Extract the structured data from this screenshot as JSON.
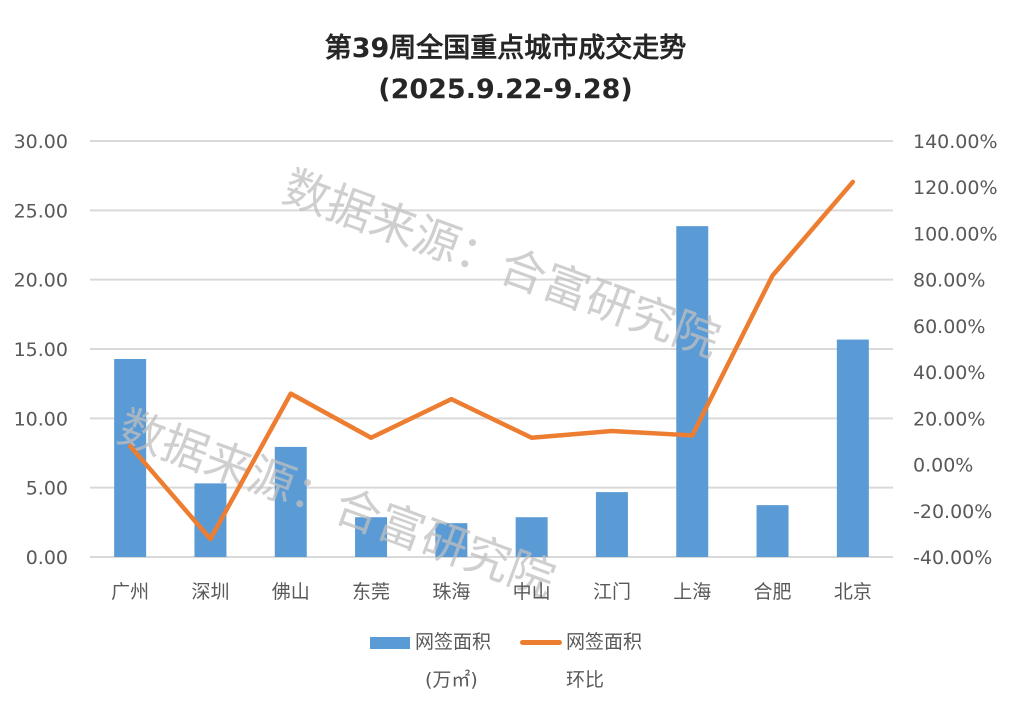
{
  "title": {
    "line1": "第39周全国重点城市成交走势",
    "line2": "(2025.9.22-9.28)"
  },
  "watermark": "数据来源：合富研究院",
  "legend": {
    "bar_label_line1": "网签面积",
    "bar_label_line2": "(万㎡)",
    "line_label_line1": "网签面积",
    "line_label_line2": "环比"
  },
  "colors": {
    "bar": "#5B9BD5",
    "line": "#ED7D31",
    "grid": "#D9D9D9",
    "watermark": "#BFBFBF"
  },
  "chart_data": {
    "type": "bar+line",
    "title": "第39周全国重点城市成交走势 (2025.9.22-9.28)",
    "categories": [
      "广州",
      "深圳",
      "佛山",
      "东莞",
      "珠海",
      "中山",
      "江门",
      "上海",
      "合肥",
      "北京"
    ],
    "series": [
      {
        "name": "网签面积(万㎡)",
        "type": "bar",
        "axis": "left",
        "values": [
          14.28,
          5.31,
          7.94,
          2.87,
          2.44,
          2.87,
          4.68,
          23.86,
          3.74,
          15.68
        ]
      },
      {
        "name": "网签面积环比",
        "type": "line",
        "axis": "right",
        "unit": "%",
        "values": [
          8.0,
          -32.2,
          30.7,
          11.6,
          28.3,
          11.6,
          14.5,
          12.6,
          81.8,
          122.3
        ]
      }
    ],
    "left_axis": {
      "ylim": [
        0,
        30
      ],
      "ticks": [
        "0.00",
        "5.00",
        "10.00",
        "15.00",
        "20.00",
        "25.00",
        "30.00"
      ]
    },
    "right_axis": {
      "ylim": [
        -40,
        140
      ],
      "ticks": [
        "-40.00%",
        "-20.00%",
        "0.00%",
        "20.00%",
        "40.00%",
        "60.00%",
        "80.00%",
        "100.00%",
        "120.00%",
        "140.00%"
      ]
    },
    "grid": true,
    "legend_position": "bottom"
  }
}
